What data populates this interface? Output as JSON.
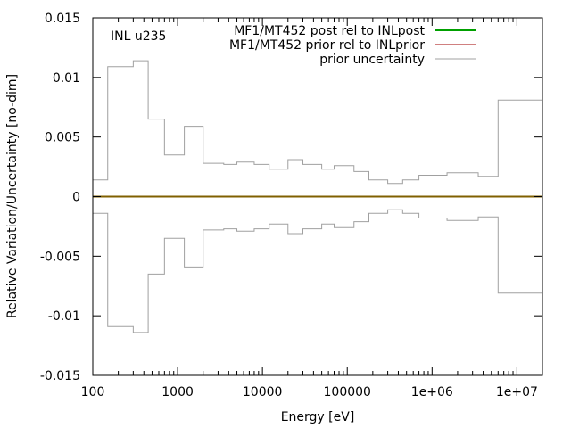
{
  "chart_data": {
    "type": "line",
    "xscale": "log",
    "xlim": [
      100,
      20000000
    ],
    "ylim": [
      -0.015,
      0.015
    ],
    "xlabel": "Energy [eV]",
    "ylabel": "Relative Variation/Uncertainty [no-dim]",
    "annotation": "INL u235",
    "legend_position": "top-right",
    "grid": false,
    "x_ticks": [
      {
        "value": 100,
        "label": "100"
      },
      {
        "value": 1000,
        "label": "1000"
      },
      {
        "value": 10000,
        "label": "10000"
      },
      {
        "value": 100000,
        "label": "100000"
      },
      {
        "value": 1000000,
        "label": "1e+06"
      },
      {
        "value": 10000000,
        "label": "1e+07"
      }
    ],
    "y_ticks": [
      {
        "value": 0.015,
        "label": "0.015"
      },
      {
        "value": 0.01,
        "label": "0.01"
      },
      {
        "value": 0.005,
        "label": "0.005"
      },
      {
        "value": 0,
        "label": "0"
      },
      {
        "value": -0.005,
        "label": "-0.005"
      },
      {
        "value": -0.01,
        "label": "-0.01"
      },
      {
        "value": -0.015,
        "label": "-0.015"
      }
    ],
    "series": [
      {
        "name": "MF1/MT452 post rel to INLpost",
        "color": "#00a000",
        "style": "line",
        "constant": 0
      },
      {
        "name": "MF1/MT452 prior rel to INLprior",
        "color": "#a00000",
        "style": "line",
        "constant": 0
      },
      {
        "name": "prior uncertainty",
        "color": "#a0a0a0",
        "style": "step",
        "mirrored": true,
        "bin_edges": [
          100,
          150,
          300,
          450,
          700,
          1200,
          2000,
          3500,
          5000,
          8000,
          12000,
          20000,
          30000,
          50000,
          70000,
          120000,
          180000,
          300000,
          450000,
          700000,
          1000000,
          1500000,
          3500000,
          6000000,
          10000000,
          20000000
        ],
        "values": [
          0.0014,
          0.0109,
          0.0114,
          0.0065,
          0.0035,
          0.0059,
          0.0028,
          0.0027,
          0.0029,
          0.0027,
          0.0023,
          0.0031,
          0.0027,
          0.0023,
          0.0026,
          0.0021,
          0.0014,
          0.0011,
          0.0014,
          0.0018,
          0.0018,
          0.002,
          0.0017,
          0.0081,
          0.0081
        ]
      }
    ]
  }
}
